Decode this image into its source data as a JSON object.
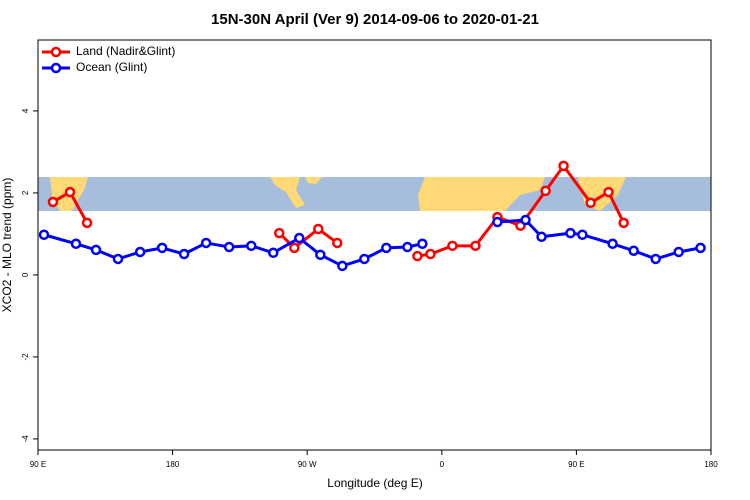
{
  "chart_data": {
    "type": "line",
    "title": "15N-30N April (Ver 9)   2014-09-06 to 2020-01-21",
    "xlabel": "Longitude (deg E)",
    "ylabel": "XCO2 - MLO trend (ppm)",
    "xlim": [
      90,
      540
    ],
    "ylim": [
      -4.27,
      5.73
    ],
    "xticks": [
      {
        "value": 90,
        "label": "90 E"
      },
      180,
      {
        "value": 270,
        "label": "90 W"
      },
      {
        "value": 360,
        "label": "0"
      },
      {
        "value": 450,
        "label": "90 E"
      },
      {
        "value": 540,
        "label": "180"
      }
    ],
    "yticks": [
      -4,
      -2,
      0,
      2,
      4
    ],
    "legend": "top-left",
    "series": [
      {
        "name": "Land (Nadir&Glint)",
        "color": "#ff0000",
        "x": [
          100,
          111.4,
          122.8,
          null,
          251.3,
          261.4,
          277.4,
          290.1,
          null,
          343.7,
          352.4,
          367.1,
          382.5,
          397.2,
          412.6,
          429.4,
          441.4,
          459.5,
          471.5,
          481.6
        ],
        "values": [
          1.78,
          2.02,
          1.27,
          null,
          1.02,
          0.66,
          1.12,
          0.78,
          null,
          0.46,
          0.51,
          0.71,
          0.71,
          1.41,
          1.2,
          2.05,
          2.66,
          1.76,
          2.02,
          1.27
        ]
      },
      {
        "name": "Ocean (Glint)",
        "color": "#0000ff",
        "x": [
          94,
          115.4,
          128.8,
          143.5,
          158.3,
          173,
          187.7,
          202.4,
          217.8,
          232.6,
          247.3,
          264.7,
          278.8,
          293.5,
          308.2,
          322.9,
          337,
          347,
          null,
          397.2,
          416,
          426.7,
          446,
          454,
          474.2,
          488.3,
          503,
          518.4,
          533
        ],
        "values": [
          0.98,
          0.76,
          0.61,
          0.39,
          0.56,
          0.66,
          0.51,
          0.78,
          0.68,
          0.71,
          0.54,
          0.9,
          0.49,
          0.22,
          0.39,
          0.66,
          0.68,
          0.76,
          null,
          1.29,
          1.34,
          0.93,
          1.02,
          0.98,
          0.76,
          0.59,
          0.39,
          0.56,
          0.66
        ]
      }
    ]
  }
}
